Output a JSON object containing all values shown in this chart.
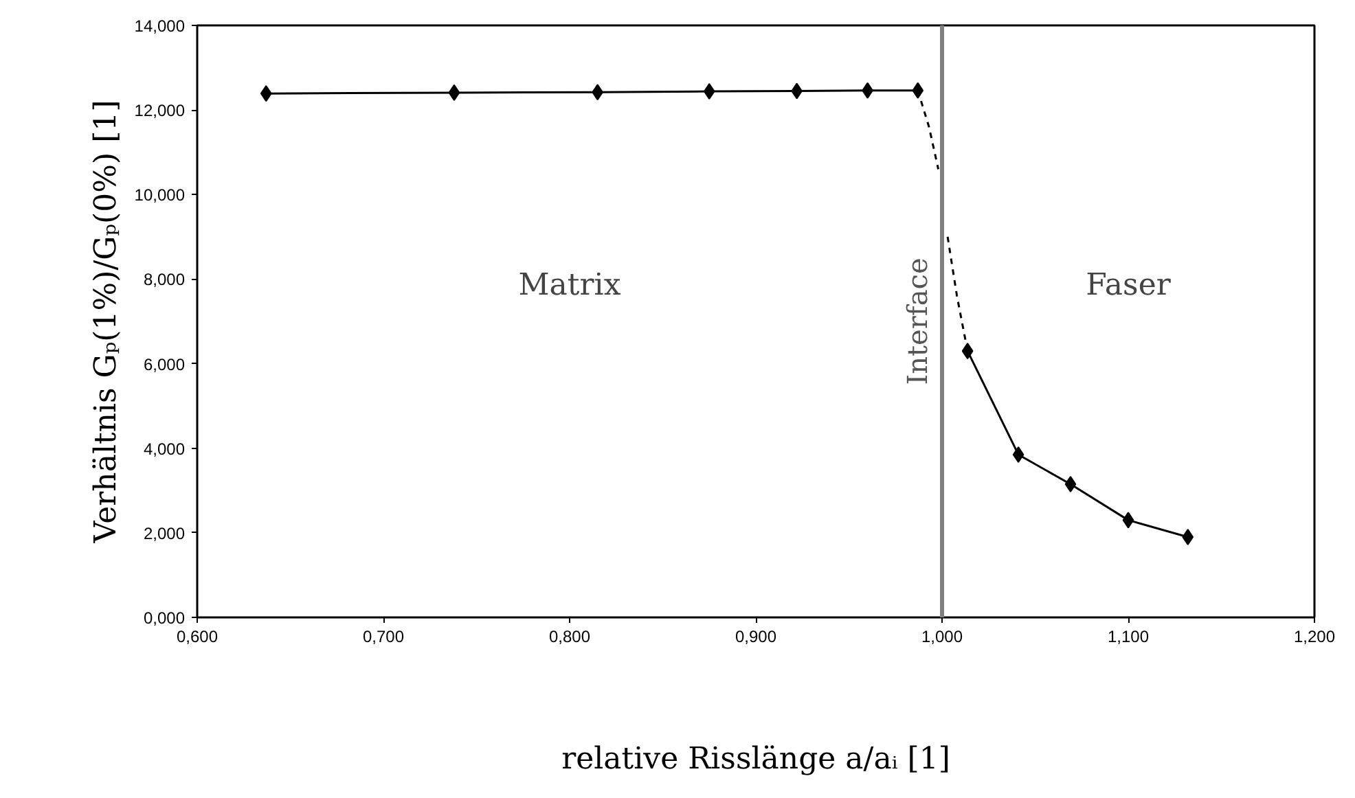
{
  "chart_data": {
    "type": "line",
    "xlabel": "relative Risslänge a/aᵢ [1]",
    "ylabel": "Verhältnis Gₚ(1%)/Gₚ(0%) [1]",
    "series": [
      {
        "color": "#000000",
        "marker": "diamond",
        "line_style": "solid",
        "x": [
          0.637,
          0.738,
          0.815,
          0.875,
          0.922,
          0.96,
          0.987
        ],
        "values": [
          12.39,
          12.41,
          12.42,
          12.44,
          12.45,
          12.46,
          12.46
        ]
      },
      {
        "color": "#000000",
        "marker": "none",
        "line_style": "dashed",
        "x": [
          0.987,
          0.993,
          0.998,
          1.0,
          1.003,
          1.008,
          1.0137
        ],
        "values": [
          12.46,
          11.6,
          10.6,
          null,
          9.0,
          7.6,
          6.3
        ]
      },
      {
        "color": "#000000",
        "marker": "diamond",
        "line_style": "solid",
        "x": [
          1.0137,
          1.041,
          1.069,
          1.1,
          1.132
        ],
        "values": [
          6.3,
          3.85,
          3.15,
          2.3,
          1.9
        ]
      }
    ],
    "xlim": [
      0.6,
      1.2
    ],
    "xticks": [
      {
        "value": 0.6,
        "label": "0,600"
      },
      {
        "value": 0.7,
        "label": "0,700"
      },
      {
        "value": 0.8,
        "label": "0,800"
      },
      {
        "value": 0.9,
        "label": "0,900"
      },
      {
        "value": 1.0,
        "label": "1,000"
      },
      {
        "value": 1.1,
        "label": "1,100"
      },
      {
        "value": 1.2,
        "label": "1,200"
      }
    ],
    "ylim": [
      0,
      14
    ],
    "yticks": [
      {
        "value": 0,
        "label": "0,000"
      },
      {
        "value": 2,
        "label": "2,000"
      },
      {
        "value": 4,
        "label": "4,000"
      },
      {
        "value": 6,
        "label": "6,000"
      },
      {
        "value": 8,
        "label": "8,000"
      },
      {
        "value": 10,
        "label": "10,000"
      },
      {
        "value": 12,
        "label": "12,000"
      },
      {
        "value": 14,
        "label": "14,000"
      }
    ],
    "ref_lines": [
      {
        "axis": "x",
        "value": 1.0,
        "label": "Interface",
        "color": "#808080"
      }
    ],
    "annotations": [
      "Matrix",
      "Faser"
    ],
    "grid": false
  }
}
